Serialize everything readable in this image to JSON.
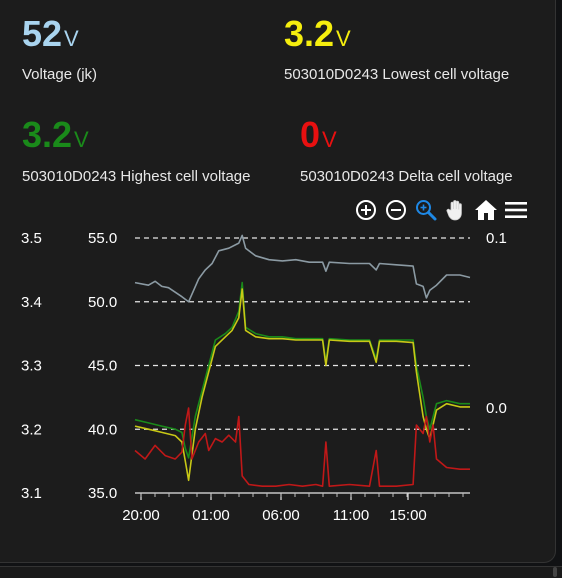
{
  "stats": [
    {
      "value": "52",
      "unit": "V",
      "label": "Voltage (jk)",
      "color": "#a9d4ef"
    },
    {
      "value": "3.2",
      "unit": "V",
      "label": "503010D0243 Lowest cell voltage",
      "color": "#f5ee0e"
    },
    {
      "value": "3.2",
      "unit": "V",
      "label": "503010D0243 Highest cell voltage",
      "color": "#1a8a1a"
    },
    {
      "value": "0",
      "unit": "V",
      "label": "503010D0243 Delta cell voltage",
      "color": "#e81010"
    }
  ],
  "toolbar": {
    "icons": [
      "zoom-in-icon",
      "zoom-out-icon",
      "selection-zoom-icon",
      "pan-hand-icon",
      "reset-home-icon",
      "menu-icon"
    ]
  },
  "chart_data": {
    "type": "line",
    "x_ticks": [
      "20:00",
      "01:00",
      "06:00",
      "11:00",
      "15:00"
    ],
    "y_left_cell_ticks": [
      "3.5",
      "3.4",
      "3.3",
      "3.2",
      "3.1"
    ],
    "y_left_voltage_ticks": [
      "55.0",
      "50.0",
      "45.0",
      "40.0",
      "35.0"
    ],
    "y_right_delta_ticks": [
      "0.1",
      "0.0"
    ],
    "y_left_cell_range": [
      3.1,
      3.5
    ],
    "y_left_voltage_range": [
      35.0,
      55.0
    ],
    "y_right_delta_range": [
      -0.05,
      0.1
    ],
    "grid": true,
    "series": [
      {
        "color": "#8b9aa3",
        "axis": "voltage",
        "points": [
          [
            0,
            51.5
          ],
          [
            4,
            51.3
          ],
          [
            6,
            51.6
          ],
          [
            8,
            51.2
          ],
          [
            10,
            51.1
          ],
          [
            14,
            50.4
          ],
          [
            16,
            50.0
          ],
          [
            19,
            51.8
          ],
          [
            21,
            52.5
          ],
          [
            23,
            53.0
          ],
          [
            25,
            54.0
          ],
          [
            28,
            54.2
          ],
          [
            31,
            54.6
          ],
          [
            32,
            55.2
          ],
          [
            33,
            54.2
          ],
          [
            36,
            53.6
          ],
          [
            40,
            53.3
          ],
          [
            44,
            53.2
          ],
          [
            48,
            53.3
          ],
          [
            52,
            53.1
          ],
          [
            56,
            53.1
          ],
          [
            57,
            52.4
          ],
          [
            58,
            53.1
          ],
          [
            64,
            53.0
          ],
          [
            70,
            53.0
          ],
          [
            72,
            52.5
          ],
          [
            73,
            53.0
          ],
          [
            78,
            52.9
          ],
          [
            83,
            52.8
          ],
          [
            84,
            51.4
          ],
          [
            86,
            51.2
          ],
          [
            87,
            50.3
          ],
          [
            88,
            50.9
          ],
          [
            90,
            51.3
          ],
          [
            93,
            52.1
          ],
          [
            97,
            52.1
          ],
          [
            100,
            51.9
          ]
        ]
      },
      {
        "color": "#1a8a1a",
        "axis": "cell",
        "points": [
          [
            0,
            3.215
          ],
          [
            4,
            3.21
          ],
          [
            8,
            3.205
          ],
          [
            12,
            3.2
          ],
          [
            14,
            3.195
          ],
          [
            15,
            3.17
          ],
          [
            16,
            3.155
          ],
          [
            18,
            3.22
          ],
          [
            20,
            3.26
          ],
          [
            22,
            3.3
          ],
          [
            24,
            3.34
          ],
          [
            27,
            3.35
          ],
          [
            29,
            3.36
          ],
          [
            31,
            3.385
          ],
          [
            32,
            3.43
          ],
          [
            33,
            3.36
          ],
          [
            36,
            3.35
          ],
          [
            40,
            3.345
          ],
          [
            44,
            3.345
          ],
          [
            48,
            3.342
          ],
          [
            52,
            3.342
          ],
          [
            56,
            3.342
          ],
          [
            57,
            3.305
          ],
          [
            58,
            3.342
          ],
          [
            64,
            3.34
          ],
          [
            70,
            3.34
          ],
          [
            72,
            3.31
          ],
          [
            73,
            3.34
          ],
          [
            78,
            3.34
          ],
          [
            83,
            3.34
          ],
          [
            84,
            3.3
          ],
          [
            86,
            3.25
          ],
          [
            87,
            3.22
          ],
          [
            88,
            3.2
          ],
          [
            90,
            3.24
          ],
          [
            93,
            3.245
          ],
          [
            97,
            3.24
          ],
          [
            100,
            3.24
          ]
        ]
      },
      {
        "color": "#c8c816",
        "axis": "cell",
        "points": [
          [
            0,
            3.205
          ],
          [
            4,
            3.2
          ],
          [
            8,
            3.195
          ],
          [
            12,
            3.19
          ],
          [
            14,
            3.18
          ],
          [
            15,
            3.15
          ],
          [
            16,
            3.12
          ],
          [
            18,
            3.2
          ],
          [
            20,
            3.25
          ],
          [
            22,
            3.29
          ],
          [
            24,
            3.33
          ],
          [
            27,
            3.345
          ],
          [
            29,
            3.355
          ],
          [
            31,
            3.375
          ],
          [
            32,
            3.42
          ],
          [
            33,
            3.355
          ],
          [
            36,
            3.345
          ],
          [
            40,
            3.342
          ],
          [
            44,
            3.342
          ],
          [
            48,
            3.34
          ],
          [
            52,
            3.34
          ],
          [
            56,
            3.34
          ],
          [
            57,
            3.3
          ],
          [
            58,
            3.34
          ],
          [
            64,
            3.338
          ],
          [
            70,
            3.338
          ],
          [
            72,
            3.305
          ],
          [
            73,
            3.338
          ],
          [
            78,
            3.338
          ],
          [
            83,
            3.336
          ],
          [
            84,
            3.29
          ],
          [
            86,
            3.22
          ],
          [
            87,
            3.2
          ],
          [
            88,
            3.185
          ],
          [
            90,
            3.23
          ],
          [
            93,
            3.24
          ],
          [
            97,
            3.235
          ],
          [
            100,
            3.235
          ]
        ]
      },
      {
        "color": "#c01818",
        "axis": "delta",
        "points": [
          [
            0,
            -0.025
          ],
          [
            3,
            -0.03
          ],
          [
            6,
            -0.022
          ],
          [
            9,
            -0.028
          ],
          [
            12,
            -0.03
          ],
          [
            14,
            -0.026
          ],
          [
            15,
            -0.01
          ],
          [
            16,
            0.0
          ],
          [
            17,
            -0.03
          ],
          [
            19,
            -0.02
          ],
          [
            21,
            -0.015
          ],
          [
            22,
            -0.025
          ],
          [
            24,
            -0.018
          ],
          [
            26,
            -0.02
          ],
          [
            28,
            -0.016
          ],
          [
            30,
            -0.02
          ],
          [
            31,
            -0.005
          ],
          [
            32,
            -0.04
          ],
          [
            34,
            -0.045
          ],
          [
            38,
            -0.046
          ],
          [
            42,
            -0.046
          ],
          [
            46,
            -0.045
          ],
          [
            50,
            -0.046
          ],
          [
            54,
            -0.045
          ],
          [
            56,
            -0.046
          ],
          [
            57,
            -0.02
          ],
          [
            58,
            -0.046
          ],
          [
            64,
            -0.045
          ],
          [
            70,
            -0.046
          ],
          [
            72,
            -0.025
          ],
          [
            73,
            -0.046
          ],
          [
            78,
            -0.046
          ],
          [
            83,
            -0.045
          ],
          [
            84,
            -0.01
          ],
          [
            86,
            -0.015
          ],
          [
            87,
            -0.005
          ],
          [
            88,
            -0.02
          ],
          [
            89,
            -0.01
          ],
          [
            90,
            -0.03
          ],
          [
            93,
            -0.035
          ],
          [
            97,
            -0.036
          ],
          [
            100,
            -0.036
          ]
        ]
      }
    ]
  }
}
